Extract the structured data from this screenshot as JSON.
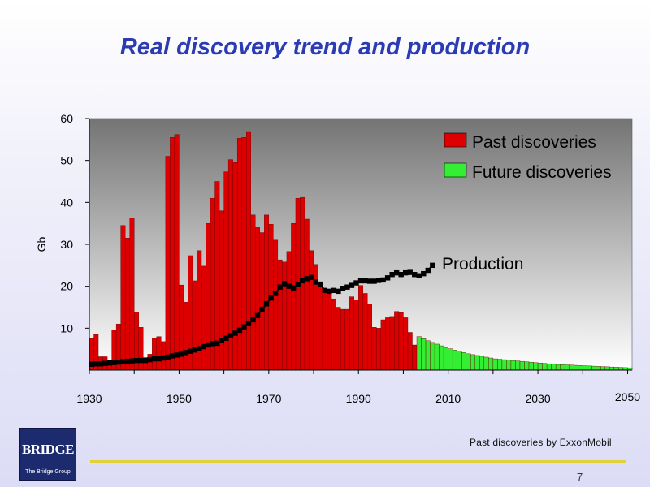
{
  "slide": {
    "title": "Real discovery trend and production",
    "source_note": "Past discoveries by ExxonMobil",
    "page_number": "7",
    "logo_text": "BRIDGE",
    "logo_subtext": "The Bridge Group",
    "title_color": "#2b3bb3",
    "footer_line_color": "#e2d23a"
  },
  "chart_data": {
    "type": "bar",
    "title": "",
    "xlabel": "",
    "ylabel": "Gb",
    "ylim": [
      0,
      60
    ],
    "xlim": [
      1930,
      2050
    ],
    "y_ticks": [
      10,
      20,
      30,
      40,
      50,
      60
    ],
    "x_ticks": [
      "1930",
      "1950",
      "1970",
      "1990",
      "2010",
      "2030",
      "2050"
    ],
    "grid": false,
    "legend_position": "top-right",
    "background": "gray-gradient",
    "series": [
      {
        "name": "Past discoveries",
        "type": "bar",
        "color": "#dd0000",
        "x": [
          1930,
          1931,
          1932,
          1933,
          1934,
          1935,
          1936,
          1937,
          1938,
          1939,
          1940,
          1941,
          1942,
          1943,
          1944,
          1945,
          1946,
          1947,
          1948,
          1949,
          1950,
          1951,
          1952,
          1953,
          1954,
          1955,
          1956,
          1957,
          1958,
          1959,
          1960,
          1961,
          1962,
          1963,
          1964,
          1965,
          1966,
          1967,
          1968,
          1969,
          1970,
          1971,
          1972,
          1973,
          1974,
          1975,
          1976,
          1977,
          1978,
          1979,
          1980,
          1981,
          1982,
          1983,
          1984,
          1985,
          1986,
          1987,
          1988,
          1989,
          1990,
          1991,
          1992,
          1993,
          1994,
          1995,
          1996,
          1997,
          1998,
          1999,
          2000,
          2001,
          2002
        ],
        "values": [
          7.5,
          8.5,
          3.2,
          3.2,
          2,
          9.5,
          11,
          34.5,
          31.5,
          36.3,
          13.8,
          10.2,
          3,
          3.8,
          7.7,
          8,
          6.8,
          51,
          55.5,
          56.2,
          20.3,
          16.2,
          27.3,
          21.3,
          28.5,
          24.8,
          35,
          41,
          45,
          38,
          47.3,
          50.2,
          49.5,
          55.3,
          55.5,
          56.7,
          37,
          34,
          32.8,
          37,
          34.8,
          31,
          26.3,
          25.8,
          28.3,
          35,
          41,
          41.2,
          36,
          28.5,
          25.2,
          20.8,
          18.5,
          18.5,
          17,
          15,
          14.5,
          14.5,
          17.5,
          16.8,
          20.2,
          18.3,
          15.8,
          10.2,
          10,
          12,
          12.5,
          12.8,
          14,
          13.7,
          12.5,
          9,
          6
        ]
      },
      {
        "name": "Future discoveries",
        "type": "bar",
        "color": "#33ee33",
        "x": [
          2003,
          2004,
          2005,
          2006,
          2007,
          2008,
          2009,
          2010,
          2011,
          2012,
          2013,
          2014,
          2015,
          2016,
          2017,
          2018,
          2019,
          2020,
          2021,
          2022,
          2023,
          2024,
          2025,
          2026,
          2027,
          2028,
          2029,
          2030,
          2031,
          2032,
          2033,
          2034,
          2035,
          2036,
          2037,
          2038,
          2039,
          2040,
          2041,
          2042,
          2043,
          2044,
          2045,
          2046,
          2047,
          2048,
          2049,
          2050
        ],
        "values": [
          8,
          7.5,
          7,
          6.6,
          6.2,
          5.8,
          5.4,
          5.1,
          4.8,
          4.5,
          4.2,
          3.9,
          3.7,
          3.5,
          3.3,
          3.1,
          2.9,
          2.7,
          2.6,
          2.5,
          2.4,
          2.3,
          2.2,
          2.1,
          2,
          1.9,
          1.8,
          1.7,
          1.6,
          1.5,
          1.4,
          1.35,
          1.3,
          1.25,
          1.2,
          1.15,
          1.1,
          1.05,
          1,
          0.95,
          0.9,
          0.85,
          0.8,
          0.75,
          0.7,
          0.65,
          0.6,
          0.55
        ]
      },
      {
        "name": "Production",
        "type": "line",
        "color": "#000000",
        "x": [
          1930,
          1931,
          1932,
          1933,
          1934,
          1935,
          1936,
          1937,
          1938,
          1939,
          1940,
          1941,
          1942,
          1943,
          1944,
          1945,
          1946,
          1947,
          1948,
          1949,
          1950,
          1951,
          1952,
          1953,
          1954,
          1955,
          1956,
          1957,
          1958,
          1959,
          1960,
          1961,
          1962,
          1963,
          1964,
          1965,
          1966,
          1967,
          1968,
          1969,
          1970,
          1971,
          1972,
          1973,
          1974,
          1975,
          1976,
          1977,
          1978,
          1979,
          1980,
          1981,
          1982,
          1983,
          1984,
          1985,
          1986,
          1987,
          1988,
          1989,
          1990,
          1991,
          1992,
          1993,
          1994,
          1995,
          1996,
          1997,
          1998,
          1999,
          2000,
          2001,
          2002,
          2003,
          2004,
          2005,
          2006
        ],
        "values": [
          1.4,
          1.5,
          1.5,
          1.6,
          1.7,
          1.8,
          1.9,
          2,
          2.1,
          2.2,
          2.3,
          2.3,
          2.3,
          2.5,
          2.7,
          2.7,
          2.9,
          3.1,
          3.4,
          3.6,
          3.8,
          4.2,
          4.5,
          4.8,
          5.1,
          5.6,
          6,
          6.3,
          6.4,
          7,
          7.6,
          8.2,
          8.8,
          9.5,
          10.3,
          11.1,
          12,
          13,
          14.5,
          15.8,
          17.2,
          18.3,
          19.8,
          20.6,
          20,
          19.6,
          20.5,
          21.3,
          21.8,
          22.1,
          21,
          20.5,
          19,
          18.8,
          19,
          18.8,
          19.5,
          19.8,
          20.2,
          20.8,
          21.3,
          21.3,
          21.2,
          21.2,
          21.4,
          21.5,
          22,
          22.8,
          23.2,
          22.8,
          23.2,
          23.3,
          22.8,
          22.5,
          23,
          23.8,
          25
        ]
      }
    ]
  }
}
